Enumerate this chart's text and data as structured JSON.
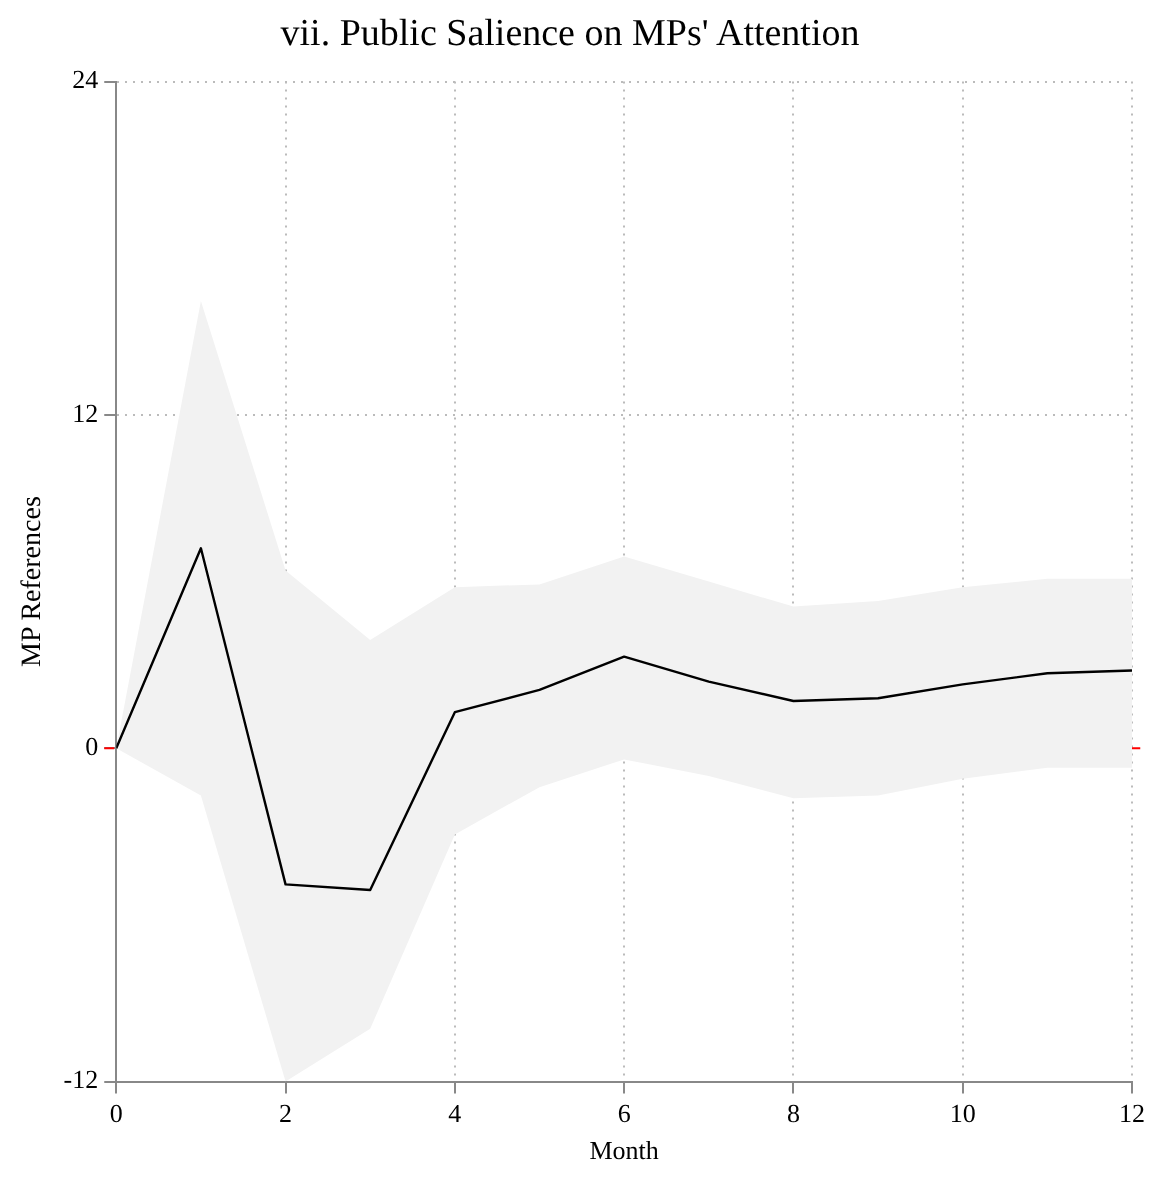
{
  "chart_data": {
    "type": "line",
    "title": "vii. Public Salience on MPs' Attention",
    "xlabel": "Month",
    "ylabel": "MP References",
    "x": [
      0,
      1,
      2,
      3,
      4,
      5,
      6,
      7,
      8,
      9,
      10,
      11,
      12
    ],
    "series": [
      {
        "color": "#000000",
        "values": [
          0,
          7.2,
          -4.9,
          -5.1,
          1.3,
          2.1,
          3.3,
          2.4,
          1.7,
          1.8,
          2.3,
          2.7,
          2.8
        ],
        "lower": [
          0,
          -1.7,
          -12,
          -10.1,
          -3.1,
          -1.4,
          -0.4,
          -1.0,
          -1.8,
          -1.7,
          -1.1,
          -0.7,
          -0.7
        ],
        "upper": [
          0,
          16.1,
          6.4,
          3.9,
          5.8,
          5.9,
          6.9,
          6.0,
          5.1,
          5.3,
          5.8,
          6.1,
          6.1
        ]
      }
    ],
    "xlim": [
      0,
      12
    ],
    "xticks": [
      0,
      2,
      4,
      6,
      8,
      10,
      12
    ],
    "ylim": [
      -12,
      24
    ],
    "yticks": [
      -12,
      0,
      12,
      24
    ],
    "ref_lines": [
      {
        "axis": "y",
        "value": 0,
        "color": "#ff0000",
        "line_style": "dashed"
      }
    ],
    "grid": true,
    "legend": false,
    "marker": "none",
    "line_style": "solid"
  }
}
